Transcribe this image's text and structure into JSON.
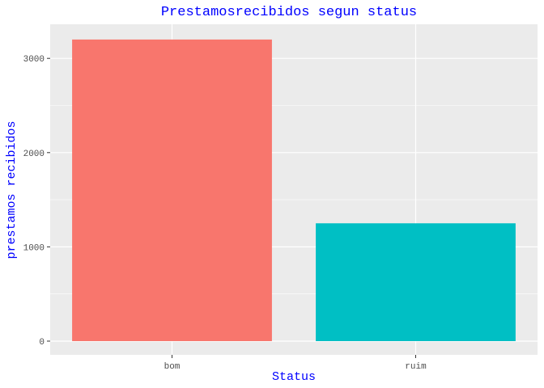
{
  "chart_data": {
    "type": "bar",
    "title": "Prestamosrecibidos segun status",
    "xlabel": "Status",
    "ylabel": "prestamos recibidos",
    "categories": [
      "bom",
      "ruim"
    ],
    "values": [
      3200,
      1250
    ],
    "colors": [
      "#F8766D",
      "#00BFC4"
    ],
    "ylim": [
      0,
      3360
    ],
    "yticks": [
      0,
      1000,
      2000,
      3000
    ],
    "ytick_labels": [
      "0",
      "1000",
      "2000",
      "3000"
    ],
    "grid": true,
    "legend": "none",
    "panel_background": "#EBEBEB",
    "text_color": "#0000FF"
  }
}
